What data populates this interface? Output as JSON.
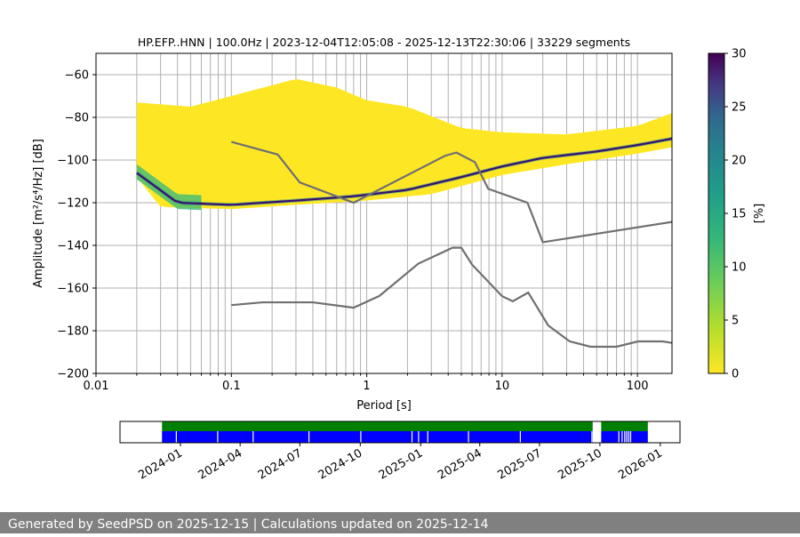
{
  "footer": {
    "text": "Generated by SeedPSD on 2025-12-15 | Calculations updated on 2025-12-14",
    "background": "#808080"
  },
  "chart_data": [
    {
      "type": "heatmap",
      "title": "HP.EFP..HNN | 100.0Hz | 2023-12-04T12:05:08 - 2025-12-13T22:30:06 | 33229 segments",
      "xlabel": "Period [s]",
      "ylabel": "Amplitude [m²/s⁴/Hz] [dB]",
      "x_scale": "log",
      "xlim": [
        0.01,
        180
      ],
      "ylim": [
        -200,
        -50
      ],
      "x_ticks": [
        0.01,
        0.1,
        1,
        10,
        100
      ],
      "x_tick_labels": [
        "0.01",
        "0.1",
        "1",
        "10",
        "100"
      ],
      "y_ticks": [
        -200,
        -180,
        -160,
        -140,
        -120,
        -100,
        -80,
        -60
      ],
      "y_tick_labels": [
        "−200",
        "−180",
        "−160",
        "−140",
        "−120",
        "−100",
        "−80",
        "−60"
      ],
      "grid": true,
      "colorbar": {
        "label": "[%]",
        "range": [
          0,
          30
        ],
        "ticks": [
          0,
          5,
          10,
          15,
          20,
          25,
          30
        ],
        "tick_labels": [
          "0",
          "5",
          "10",
          "15",
          "20",
          "25",
          "30"
        ],
        "colormap": "viridis"
      },
      "psd_distribution": {
        "mode_curve": [
          [
            0.02,
            -106
          ],
          [
            0.04,
            -120
          ],
          [
            0.1,
            -121
          ],
          [
            0.3,
            -119
          ],
          [
            0.8,
            -117
          ],
          [
            2,
            -114
          ],
          [
            5,
            -108
          ],
          [
            10,
            -103
          ],
          [
            20,
            -99
          ],
          [
            50,
            -96
          ],
          [
            100,
            -93
          ],
          [
            180,
            -90
          ]
        ],
        "upper_envelope": [
          [
            0.02,
            -73
          ],
          [
            0.05,
            -75
          ],
          [
            0.1,
            -70
          ],
          [
            0.3,
            -62
          ],
          [
            0.6,
            -66
          ],
          [
            1,
            -72
          ],
          [
            2,
            -75
          ],
          [
            5,
            -85
          ],
          [
            10,
            -87
          ],
          [
            30,
            -88
          ],
          [
            100,
            -84
          ],
          [
            180,
            -78
          ]
        ],
        "lower_envelope": [
          [
            0.02,
            -108
          ],
          [
            0.03,
            -122
          ],
          [
            0.1,
            -123
          ],
          [
            0.3,
            -121
          ],
          [
            1,
            -119
          ],
          [
            3,
            -116
          ],
          [
            10,
            -107
          ],
          [
            30,
            -102
          ],
          [
            100,
            -97
          ],
          [
            180,
            -94
          ]
        ]
      },
      "nhnm": {
        "name": "",
        "x": [
          0.1,
          0.22,
          0.32,
          0.8,
          3.8,
          4.6,
          6.3,
          7.9,
          15.4,
          20,
          180
        ],
        "y": [
          -91.5,
          -97.4,
          -110.5,
          -120,
          -98,
          -96.5,
          -101,
          -113.5,
          -120,
          -138.5,
          -129
        ]
      },
      "nlnm": {
        "name": "",
        "x": [
          0.1,
          0.17,
          0.4,
          0.8,
          1.24,
          2.4,
          4.3,
          5,
          6,
          10,
          12,
          15.6,
          21.9,
          31.6,
          45,
          70,
          101,
          154,
          180
        ],
        "y": [
          -168,
          -166.7,
          -166.7,
          -169.2,
          -163.7,
          -148.6,
          -141.1,
          -141.1,
          -149,
          -163.8,
          -166.2,
          -162.1,
          -177.5,
          -185,
          -187.5,
          -187.5,
          -185,
          -185,
          -185.7
        ]
      },
      "colors": {
        "envelope_fill": "#fde725",
        "noise_model_line": "#707070",
        "grid": "#b0b0b0"
      }
    },
    {
      "type": "timeline",
      "x_tick_labels": [
        "2024-01",
        "2024-04",
        "2024-07",
        "2024-10",
        "2025-01",
        "2025-04",
        "2025-07",
        "2025-10",
        "2026-01"
      ],
      "xlim": [
        "2023-10-01",
        "2026-01-31"
      ],
      "data_start": "2023-12-04",
      "data_end": "2025-12-13",
      "coverage_colors": {
        "upper": "#008000",
        "lower": "#0000ff"
      },
      "gaps": [
        "2023-12-25",
        "2024-02-26",
        "2024-04-20",
        "2024-07-14",
        "2024-10-01",
        "2024-12-18",
        "2024-12-28",
        "2025-01-11",
        "2025-03-14",
        "2025-06-01",
        "2025-09-18",
        "2025-09-22",
        "2025-09-26",
        "2025-10-29",
        "2025-11-03",
        "2025-11-07",
        "2025-11-10",
        "2025-11-13",
        "2025-11-16"
      ],
      "outage": [
        "2025-09-20",
        "2025-10-03"
      ]
    }
  ]
}
